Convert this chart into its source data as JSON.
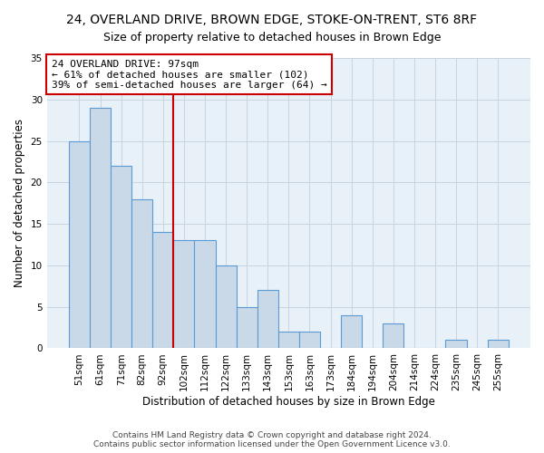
{
  "title_line1": "24, OVERLAND DRIVE, BROWN EDGE, STOKE-ON-TRENT, ST6 8RF",
  "title_line2": "Size of property relative to detached houses in Brown Edge",
  "xlabel": "Distribution of detached houses by size in Brown Edge",
  "ylabel": "Number of detached properties",
  "categories": [
    "51sqm",
    "61sqm",
    "71sqm",
    "82sqm",
    "92sqm",
    "102sqm",
    "112sqm",
    "122sqm",
    "133sqm",
    "143sqm",
    "153sqm",
    "163sqm",
    "173sqm",
    "184sqm",
    "194sqm",
    "204sqm",
    "214sqm",
    "224sqm",
    "235sqm",
    "245sqm",
    "255sqm"
  ],
  "values": [
    25,
    29,
    22,
    18,
    14,
    13,
    13,
    10,
    5,
    7,
    2,
    2,
    0,
    4,
    0,
    3,
    0,
    0,
    1,
    0,
    1
  ],
  "bar_color": "#c9d9e8",
  "bar_edge_color": "#5b9bd5",
  "bar_linewidth": 0.8,
  "grid_color": "#c8d4e0",
  "background_color": "#e8f0f8",
  "ylim": [
    0,
    35
  ],
  "yticks": [
    0,
    5,
    10,
    15,
    20,
    25,
    30,
    35
  ],
  "property_line_x": 4.5,
  "property_line_color": "#cc0000",
  "annotation_line1": "24 OVERLAND DRIVE: 97sqm",
  "annotation_line2": "← 61% of detached houses are smaller (102)",
  "annotation_line3": "39% of semi-detached houses are larger (64) →",
  "annotation_box_color": "#ffffff",
  "annotation_box_edgecolor": "#cc0000",
  "footer_line1": "Contains HM Land Registry data © Crown copyright and database right 2024.",
  "footer_line2": "Contains public sector information licensed under the Open Government Licence v3.0.",
  "title_fontsize": 10,
  "subtitle_fontsize": 9,
  "tick_fontsize": 7.5,
  "ylabel_fontsize": 8.5,
  "xlabel_fontsize": 8.5,
  "annotation_fontsize": 8,
  "footer_fontsize": 6.5
}
